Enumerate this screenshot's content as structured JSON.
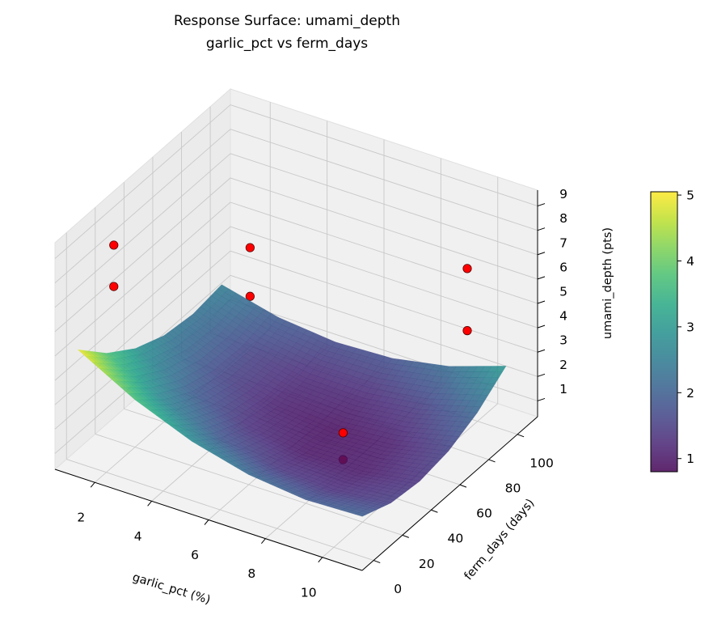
{
  "chart_data": {
    "type": "surface3d",
    "title": "Response Surface: umami_depth",
    "subtitle": "garlic_pct vs ferm_days",
    "xlabel": "garlic_pct (%)",
    "ylabel": "ferm_days (days)",
    "zlabel": "umami_depth (pts)",
    "xlim": [
      0.6,
      11.4
    ],
    "ylim": [
      -8,
      114
    ],
    "zlim": [
      0.35,
      9.65
    ],
    "xticks": [
      2,
      4,
      6,
      8,
      10
    ],
    "yticks": [
      0,
      20,
      40,
      60,
      80,
      100
    ],
    "zticks": [
      1,
      2,
      3,
      4,
      5,
      6,
      7,
      8,
      9
    ],
    "grid": true,
    "colormap": "viridis",
    "surface_alpha": 0.85,
    "surface": {
      "x": [
        1,
        3,
        5,
        7,
        9,
        11
      ],
      "y": [
        0,
        20,
        40,
        60,
        80,
        100
      ],
      "z": [
        [
          5.0,
          3.82,
          2.98,
          2.48,
          2.32,
          2.5
        ],
        [
          3.72,
          2.68,
          1.98,
          1.62,
          1.6,
          1.92
        ],
        [
          2.78,
          1.88,
          1.32,
          1.1,
          1.22,
          1.68
        ],
        [
          2.18,
          1.42,
          1.0,
          0.92,
          1.18,
          1.78
        ],
        [
          1.92,
          1.3,
          1.02,
          1.08,
          1.48,
          2.22
        ],
        [
          2.0,
          1.52,
          1.38,
          1.58,
          2.12,
          3.0
        ]
      ]
    },
    "scatter": {
      "color": "#ff0000",
      "points": [
        {
          "x": 1,
          "y": 25,
          "z": 8.0
        },
        {
          "x": 1,
          "y": 25,
          "z": 6.3
        },
        {
          "x": 2,
          "y": 100,
          "z": 4.4
        },
        {
          "x": 2,
          "y": 100,
          "z": 2.4
        },
        {
          "x": 11,
          "y": 73,
          "z": 8.4
        },
        {
          "x": 11,
          "y": 73,
          "z": 5.85
        },
        {
          "x": 8,
          "y": 46,
          "z": 1.9
        },
        {
          "x": 8,
          "y": 46,
          "z": 0.8
        }
      ]
    },
    "colorbar": {
      "range": [
        0.8,
        5.05
      ],
      "ticks": [
        1,
        2,
        3,
        4,
        5
      ]
    }
  }
}
